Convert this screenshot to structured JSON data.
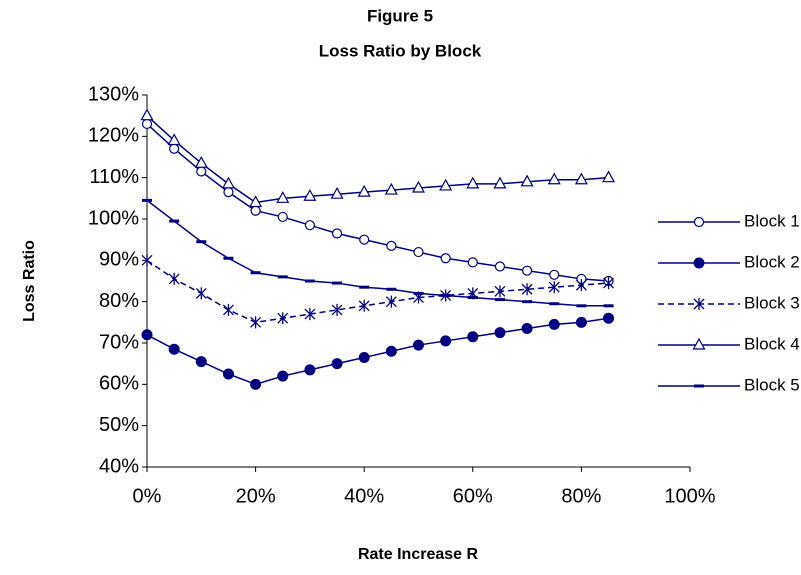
{
  "chart_data": {
    "type": "line",
    "title": "Figure 5",
    "subtitle": "Loss Ratio by Block",
    "x_label": "Rate Increase R",
    "y_label": "Loss Ratio",
    "x": [
      0,
      5,
      10,
      15,
      20,
      25,
      30,
      35,
      40,
      45,
      50,
      55,
      60,
      65,
      70,
      75,
      80,
      85
    ],
    "series": [
      {
        "name": "Block 1",
        "color": "#000080",
        "marker": "circle-open",
        "values": [
          123,
          117,
          111.5,
          106.5,
          102,
          100.5,
          98.5,
          96.5,
          95,
          93.5,
          92,
          90.5,
          89.5,
          88.5,
          87.5,
          86.5,
          85.5,
          85
        ]
      },
      {
        "name": "Block 2",
        "color": "#000080",
        "marker": "circle-filled",
        "values": [
          72,
          68.5,
          65.5,
          62.5,
          60,
          62,
          63.5,
          65,
          66.5,
          68,
          69.5,
          70.5,
          71.5,
          72.5,
          73.5,
          74.5,
          75,
          76
        ]
      },
      {
        "name": "Block 3",
        "color": "#000080",
        "marker": "star",
        "dashed": true,
        "values": [
          90,
          85.5,
          82,
          78,
          75,
          76,
          77,
          78,
          79,
          80,
          81,
          81.5,
          82,
          82.5,
          83,
          83.5,
          84,
          84.5
        ]
      },
      {
        "name": "Block 4",
        "color": "#000080",
        "marker": "triangle-open",
        "values": [
          125,
          119,
          113.5,
          108.5,
          104,
          105,
          105.5,
          106,
          106.5,
          107,
          107.5,
          108,
          108.5,
          108.5,
          109,
          109.5,
          109.5,
          110
        ]
      },
      {
        "name": "Block 5",
        "color": "#000080",
        "marker": "dash",
        "values": [
          104.5,
          99.5,
          94.5,
          90.5,
          87,
          86,
          85,
          84.5,
          83.5,
          83,
          82,
          81.5,
          81,
          80.5,
          80,
          79.5,
          79,
          79
        ]
      }
    ],
    "xlim": [
      0,
      100
    ],
    "xticks": [
      {
        "value": 0,
        "label": "0%"
      },
      {
        "value": 20,
        "label": "20%"
      },
      {
        "value": 40,
        "label": "40%"
      },
      {
        "value": 60,
        "label": "60%"
      },
      {
        "value": 80,
        "label": "80%"
      },
      {
        "value": 100,
        "label": "100%"
      }
    ],
    "ylim": [
      40,
      130
    ],
    "yticks": [
      {
        "value": 40,
        "label": "40%"
      },
      {
        "value": 50,
        "label": "50%"
      },
      {
        "value": 60,
        "label": "60%"
      },
      {
        "value": 70,
        "label": "70%"
      },
      {
        "value": 80,
        "label": "80%"
      },
      {
        "value": 90,
        "label": "90%"
      },
      {
        "value": 100,
        "label": "100%"
      },
      {
        "value": 110,
        "label": "110%"
      },
      {
        "value": 120,
        "label": "120%"
      },
      {
        "value": 130,
        "label": "130%"
      }
    ],
    "grid": false,
    "legend": "right"
  }
}
